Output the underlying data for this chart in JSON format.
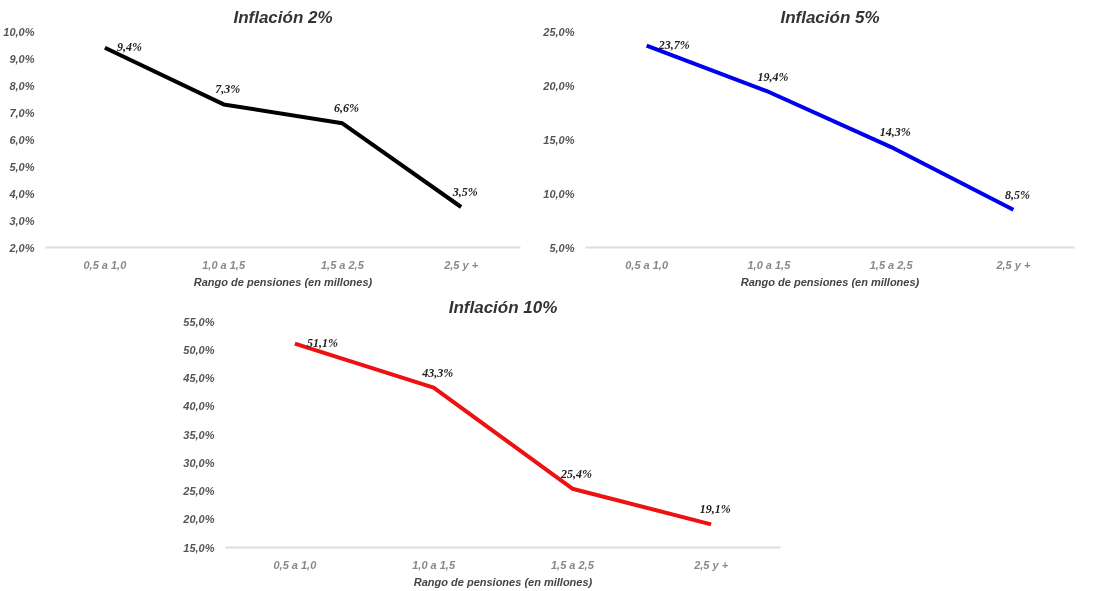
{
  "chart_data": [
    {
      "type": "line",
      "title": "Inflación 2%",
      "xlabel": "Rango de pensiones (en millones)",
      "categories": [
        "0,5 a 1,0",
        "1,0 a 1,5",
        "1,5 a 2,5",
        "2,5 y +"
      ],
      "series": [
        {
          "color": "#000000",
          "values": [
            9.4,
            7.3,
            6.6,
            3.5
          ],
          "value_labels": [
            "9,4%",
            "7,3%",
            "6,6%",
            "3,5%"
          ]
        }
      ],
      "ylim": [
        2,
        10
      ],
      "yticks": [
        {
          "value": 2,
          "label": "2,0%"
        },
        {
          "value": 3,
          "label": "3,0%"
        },
        {
          "value": 4,
          "label": "4,0%"
        },
        {
          "value": 5,
          "label": "5,0%"
        },
        {
          "value": 6,
          "label": "6,0%"
        },
        {
          "value": 7,
          "label": "7,0%"
        },
        {
          "value": 8,
          "label": "8,0%"
        },
        {
          "value": 9,
          "label": "9,0%"
        },
        {
          "value": 10,
          "label": "10,0%"
        }
      ],
      "grid": false,
      "marker": "none",
      "line_style": "solid"
    },
    {
      "type": "line",
      "title": "Inflación 5%",
      "xlabel": "Rango de pensiones (en millones)",
      "categories": [
        "0,5 a 1,0",
        "1,0 a 1,5",
        "1,5 a 2,5",
        "2,5 y +"
      ],
      "series": [
        {
          "color": "#0000ee",
          "values": [
            23.7,
            19.4,
            14.3,
            8.5
          ],
          "value_labels": [
            "23,7%",
            "19,4%",
            "14,3%",
            "8,5%"
          ]
        }
      ],
      "ylim": [
        5,
        25
      ],
      "yticks": [
        {
          "value": 5,
          "label": "5,0%"
        },
        {
          "value": 10,
          "label": "10,0%"
        },
        {
          "value": 15,
          "label": "15,0%"
        },
        {
          "value": 20,
          "label": "20,0%"
        },
        {
          "value": 25,
          "label": "25,0%"
        }
      ],
      "grid": false,
      "marker": "none",
      "line_style": "solid"
    },
    {
      "type": "line",
      "title": "Inflación 10%",
      "xlabel": "Rango de pensiones (en millones)",
      "categories": [
        "0,5 a 1,0",
        "1,0 a 1,5",
        "1,5 a 2,5",
        "2,5 y +"
      ],
      "series": [
        {
          "color": "#ee1111",
          "values": [
            51.1,
            43.3,
            25.4,
            19.1
          ],
          "value_labels": [
            "51,1%",
            "43,3%",
            "25,4%",
            "19,1%"
          ]
        }
      ],
      "ylim": [
        15,
        55
      ],
      "yticks": [
        {
          "value": 15,
          "label": "15,0%"
        },
        {
          "value": 20,
          "label": "20,0%"
        },
        {
          "value": 25,
          "label": "25,0%"
        },
        {
          "value": 30,
          "label": "30,0%"
        },
        {
          "value": 35,
          "label": "35,0%"
        },
        {
          "value": 40,
          "label": "40,0%"
        },
        {
          "value": 45,
          "label": "45,0%"
        },
        {
          "value": 50,
          "label": "50,0%"
        },
        {
          "value": 55,
          "label": "55,0%"
        }
      ],
      "grid": false,
      "marker": "none",
      "line_style": "solid"
    }
  ]
}
